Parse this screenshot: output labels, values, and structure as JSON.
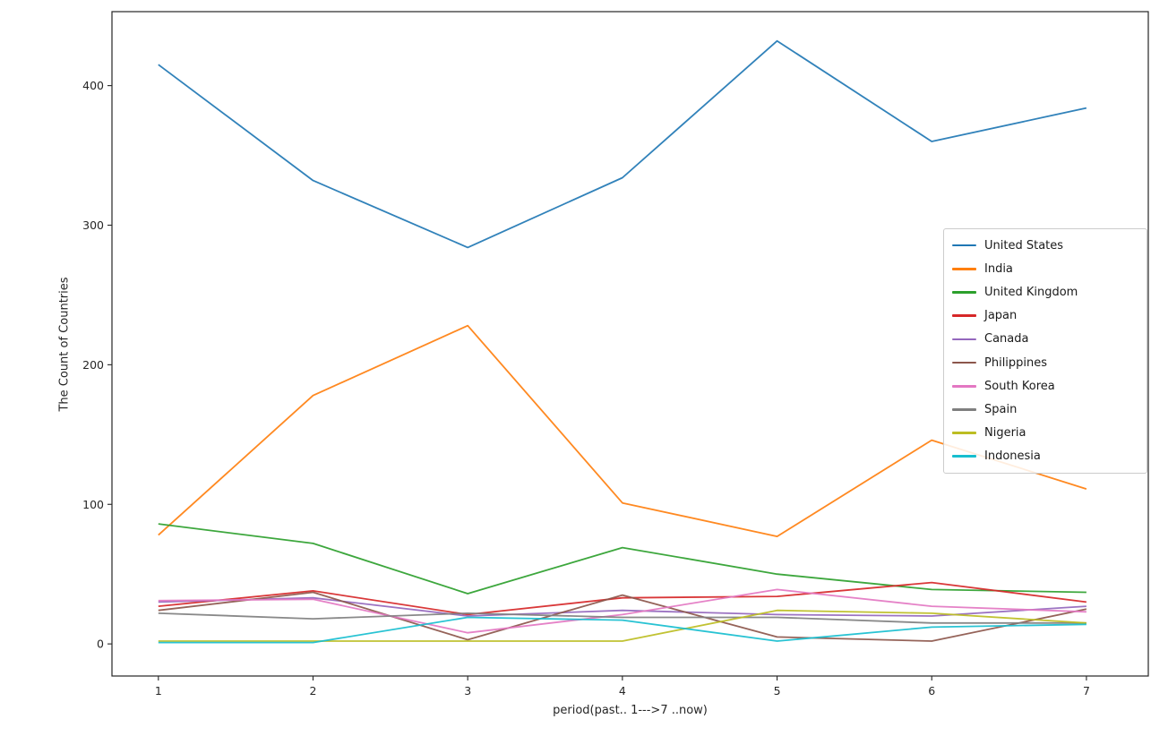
{
  "chart_data": {
    "type": "line",
    "title": "",
    "xlabel": "period(past.. 1--->7 ..now)",
    "ylabel": "The Count of Countries",
    "x": [
      1,
      2,
      3,
      4,
      5,
      6,
      7
    ],
    "xticks": [
      "1",
      "2",
      "3",
      "4",
      "5",
      "6",
      "7"
    ],
    "yticks": [
      "0",
      "100",
      "200",
      "300",
      "400"
    ],
    "ytick_values": [
      0,
      100,
      200,
      300,
      400
    ],
    "xlim": [
      0.7,
      7.4
    ],
    "ylim": [
      -23,
      453
    ],
    "grid": false,
    "legend_position": "center right",
    "background_color": "#ffffff",
    "spine_color": "#262626",
    "series": [
      {
        "name": "United States",
        "color": "#1f77b4",
        "values": [
          415,
          332,
          284,
          334,
          432,
          360,
          384
        ]
      },
      {
        "name": "India",
        "color": "#ff7f0e",
        "values": [
          78,
          178,
          228,
          101,
          77,
          146,
          111
        ]
      },
      {
        "name": "United Kingdom",
        "color": "#2ca02c",
        "values": [
          86,
          72,
          36,
          69,
          50,
          39,
          37
        ]
      },
      {
        "name": "Japan",
        "color": "#d62728",
        "values": [
          27,
          38,
          21,
          33,
          34,
          44,
          30
        ]
      },
      {
        "name": "Canada",
        "color": "#9467bd",
        "values": [
          30,
          33,
          20,
          24,
          21,
          20,
          27
        ]
      },
      {
        "name": "Philippines",
        "color": "#8c564b",
        "values": [
          24,
          37,
          3,
          35,
          5,
          2,
          25
        ]
      },
      {
        "name": "South Korea",
        "color": "#e377c2",
        "values": [
          31,
          32,
          8,
          21,
          39,
          27,
          23
        ]
      },
      {
        "name": "Spain",
        "color": "#7f7f7f",
        "values": [
          22,
          18,
          22,
          19,
          19,
          15,
          15
        ]
      },
      {
        "name": "Nigeria",
        "color": "#bcbd22",
        "values": [
          2,
          2,
          2,
          2,
          24,
          22,
          15
        ]
      },
      {
        "name": "Indonesia",
        "color": "#17becf",
        "values": [
          1,
          1,
          19,
          17,
          2,
          12,
          14
        ]
      }
    ]
  }
}
